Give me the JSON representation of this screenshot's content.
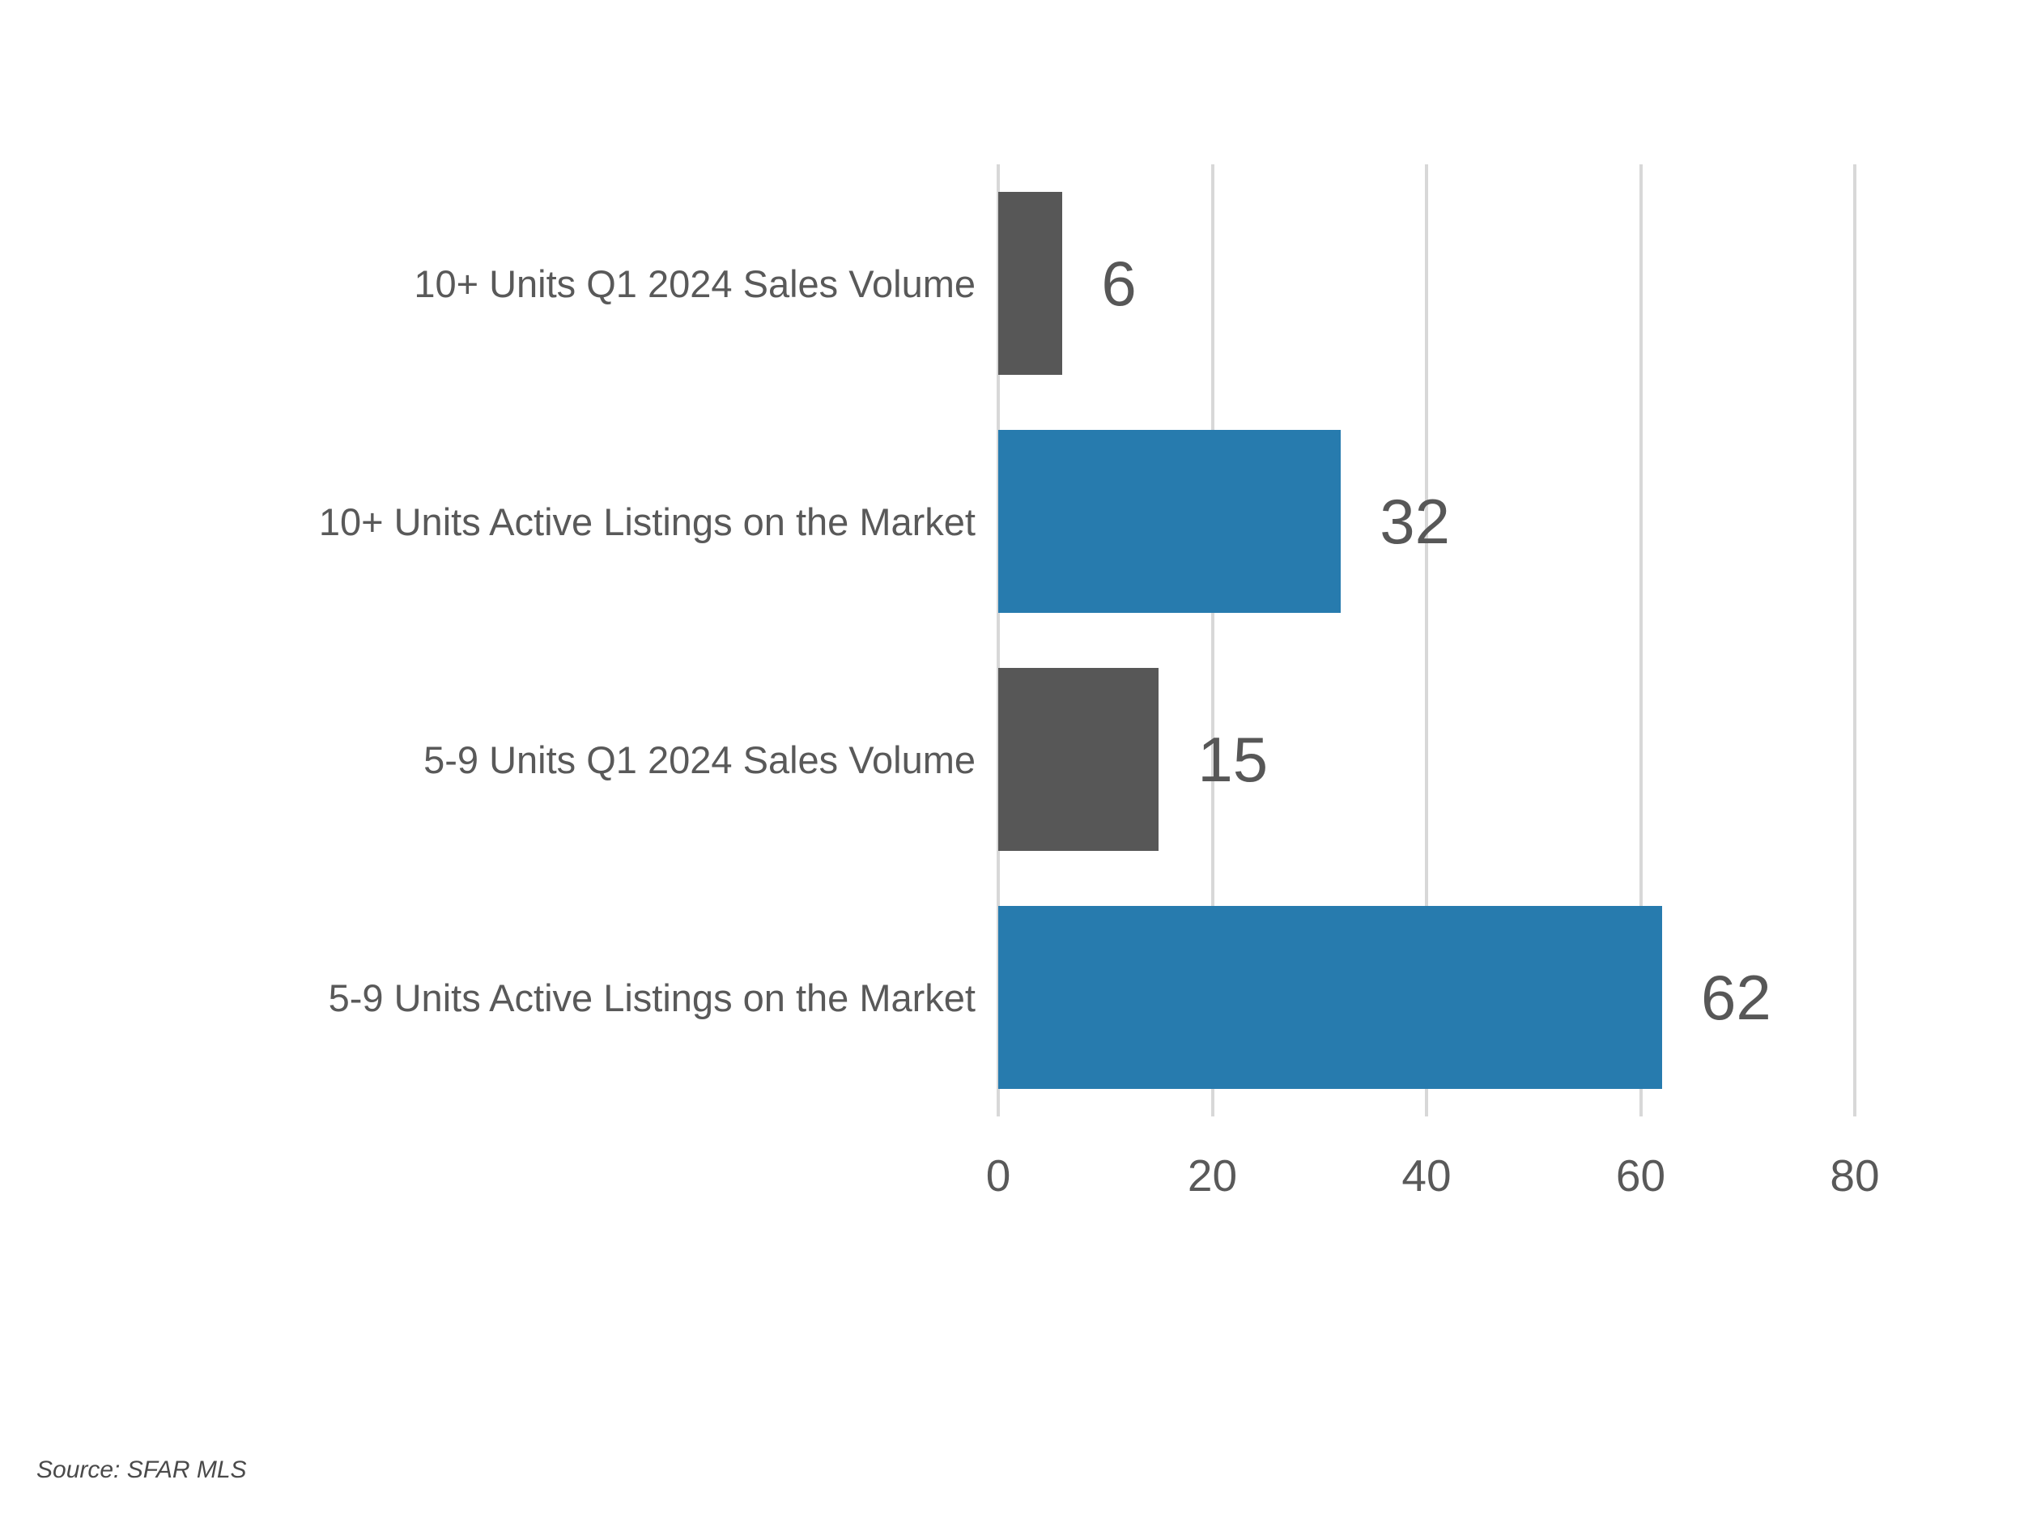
{
  "chart_data": {
    "type": "bar",
    "orientation": "horizontal",
    "title": "",
    "xlabel": "",
    "ylabel": "",
    "categories": [
      "10+ Units Q1 2024 Sales Volume",
      "10+ Units Active Listings on the Market",
      "5-9 Units Q1 2024 Sales Volume",
      "5-9 Units Active Listings on the Market"
    ],
    "values": [
      6,
      32,
      15,
      62
    ],
    "data_labels": [
      "6",
      "32",
      "15",
      "62"
    ],
    "bar_colors": [
      "#575757",
      "#277BAE",
      "#575757",
      "#277BAE"
    ],
    "x_ticks": [
      "0",
      "20",
      "40",
      "60",
      "80"
    ],
    "xlim": [
      0,
      80
    ],
    "grid": true,
    "legend": false
  },
  "colors": {
    "bar_blue": "#277BAE",
    "bar_gray": "#575757",
    "gridline": "#D8D8D8",
    "label_text": "#595959",
    "value_text": "#575757",
    "source_text": "#4A4A4A"
  },
  "footer": {
    "source_note": "Source: SFAR MLS"
  }
}
